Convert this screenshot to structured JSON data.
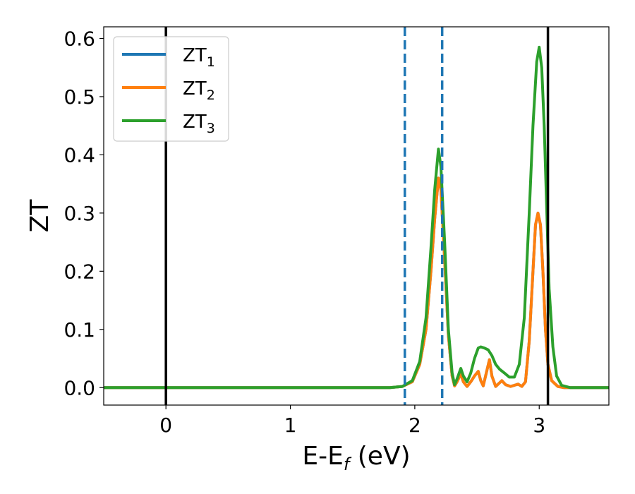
{
  "chart_data": {
    "type": "line",
    "xlabel": "E-E",
    "xlabel_subscript": "f",
    "xlabel_unit": " (eV)",
    "ylabel": "ZT",
    "xlim": [
      -0.5,
      3.56
    ],
    "ylim": [
      -0.03,
      0.62
    ],
    "x_ticks": [
      0,
      1,
      2,
      3
    ],
    "x_tick_labels": [
      "0",
      "1",
      "2",
      "3"
    ],
    "y_ticks": [
      0.0,
      0.1,
      0.2,
      0.3,
      0.4,
      0.5,
      0.6
    ],
    "y_tick_labels": [
      "0.0",
      "0.1",
      "0.2",
      "0.3",
      "0.4",
      "0.5",
      "0.6"
    ],
    "grid": false,
    "legend_position": "top-left",
    "series": [
      {
        "name": "ZT",
        "subscript": "1",
        "color": "#1f77b4",
        "points": [
          [
            -0.5,
            0
          ],
          [
            1.8,
            0
          ],
          [
            1.9,
            0.002
          ],
          [
            1.98,
            0.01
          ],
          [
            2.04,
            0.04
          ],
          [
            2.09,
            0.1
          ],
          [
            2.13,
            0.2
          ],
          [
            2.16,
            0.29
          ],
          [
            2.19,
            0.36
          ],
          [
            2.21,
            0.34
          ],
          [
            2.24,
            0.22
          ],
          [
            2.27,
            0.09
          ],
          [
            2.3,
            0.02
          ],
          [
            2.32,
            0.003
          ],
          [
            2.34,
            0.01
          ],
          [
            2.37,
            0.024
          ],
          [
            2.39,
            0.01
          ],
          [
            2.42,
            0.002
          ],
          [
            2.45,
            0.01
          ],
          [
            2.48,
            0.02
          ],
          [
            2.51,
            0.028
          ],
          [
            2.53,
            0.012
          ],
          [
            2.55,
            0.003
          ],
          [
            2.58,
            0.03
          ],
          [
            2.6,
            0.048
          ],
          [
            2.62,
            0.02
          ],
          [
            2.65,
            0.002
          ],
          [
            2.68,
            0.008
          ],
          [
            2.7,
            0.012
          ],
          [
            2.73,
            0.005
          ],
          [
            2.77,
            0.002
          ],
          [
            2.8,
            0.004
          ],
          [
            2.83,
            0.006
          ],
          [
            2.86,
            0.002
          ],
          [
            2.89,
            0.01
          ],
          [
            2.92,
            0.08
          ],
          [
            2.95,
            0.2
          ],
          [
            2.97,
            0.28
          ],
          [
            2.99,
            0.3
          ],
          [
            3.01,
            0.28
          ],
          [
            3.03,
            0.2
          ],
          [
            3.05,
            0.1
          ],
          [
            3.07,
            0.04
          ],
          [
            3.1,
            0.012
          ],
          [
            3.15,
            0.002
          ],
          [
            3.2,
            0
          ],
          [
            3.56,
            0
          ]
        ]
      },
      {
        "name": "ZT",
        "subscript": "2",
        "color": "#ff7f0e",
        "points": [
          [
            -0.5,
            0
          ],
          [
            1.8,
            0
          ],
          [
            1.9,
            0.002
          ],
          [
            1.98,
            0.01
          ],
          [
            2.04,
            0.04
          ],
          [
            2.09,
            0.1
          ],
          [
            2.13,
            0.2
          ],
          [
            2.16,
            0.29
          ],
          [
            2.19,
            0.36
          ],
          [
            2.21,
            0.34
          ],
          [
            2.24,
            0.22
          ],
          [
            2.27,
            0.09
          ],
          [
            2.3,
            0.02
          ],
          [
            2.32,
            0.003
          ],
          [
            2.34,
            0.01
          ],
          [
            2.37,
            0.024
          ],
          [
            2.39,
            0.01
          ],
          [
            2.42,
            0.002
          ],
          [
            2.45,
            0.01
          ],
          [
            2.48,
            0.02
          ],
          [
            2.51,
            0.028
          ],
          [
            2.53,
            0.012
          ],
          [
            2.55,
            0.003
          ],
          [
            2.58,
            0.03
          ],
          [
            2.6,
            0.048
          ],
          [
            2.62,
            0.02
          ],
          [
            2.65,
            0.002
          ],
          [
            2.68,
            0.008
          ],
          [
            2.7,
            0.012
          ],
          [
            2.73,
            0.005
          ],
          [
            2.77,
            0.002
          ],
          [
            2.8,
            0.004
          ],
          [
            2.83,
            0.006
          ],
          [
            2.86,
            0.002
          ],
          [
            2.89,
            0.01
          ],
          [
            2.92,
            0.08
          ],
          [
            2.95,
            0.2
          ],
          [
            2.97,
            0.28
          ],
          [
            2.99,
            0.3
          ],
          [
            3.01,
            0.28
          ],
          [
            3.03,
            0.2
          ],
          [
            3.05,
            0.1
          ],
          [
            3.07,
            0.04
          ],
          [
            3.1,
            0.012
          ],
          [
            3.15,
            0.002
          ],
          [
            3.2,
            0
          ],
          [
            3.56,
            0
          ]
        ]
      },
      {
        "name": "ZT",
        "subscript": "3",
        "color": "#2ca02c",
        "points": [
          [
            -0.5,
            0
          ],
          [
            1.8,
            0
          ],
          [
            1.9,
            0.002
          ],
          [
            1.98,
            0.012
          ],
          [
            2.04,
            0.045
          ],
          [
            2.09,
            0.12
          ],
          [
            2.13,
            0.24
          ],
          [
            2.16,
            0.34
          ],
          [
            2.19,
            0.41
          ],
          [
            2.21,
            0.38
          ],
          [
            2.24,
            0.25
          ],
          [
            2.27,
            0.1
          ],
          [
            2.3,
            0.025
          ],
          [
            2.32,
            0.005
          ],
          [
            2.34,
            0.015
          ],
          [
            2.37,
            0.033
          ],
          [
            2.39,
            0.02
          ],
          [
            2.42,
            0.01
          ],
          [
            2.45,
            0.025
          ],
          [
            2.48,
            0.05
          ],
          [
            2.51,
            0.068
          ],
          [
            2.53,
            0.07
          ],
          [
            2.56,
            0.068
          ],
          [
            2.59,
            0.065
          ],
          [
            2.62,
            0.055
          ],
          [
            2.65,
            0.04
          ],
          [
            2.68,
            0.032
          ],
          [
            2.72,
            0.025
          ],
          [
            2.76,
            0.018
          ],
          [
            2.8,
            0.018
          ],
          [
            2.84,
            0.04
          ],
          [
            2.88,
            0.12
          ],
          [
            2.92,
            0.3
          ],
          [
            2.95,
            0.45
          ],
          [
            2.98,
            0.56
          ],
          [
            3.0,
            0.585
          ],
          [
            3.02,
            0.55
          ],
          [
            3.04,
            0.45
          ],
          [
            3.06,
            0.31
          ],
          [
            3.08,
            0.17
          ],
          [
            3.11,
            0.07
          ],
          [
            3.14,
            0.02
          ],
          [
            3.18,
            0.004
          ],
          [
            3.25,
            0
          ],
          [
            3.56,
            0
          ]
        ]
      }
    ],
    "vertical_lines": [
      {
        "x": 0,
        "style": "solid",
        "color": "#000000"
      },
      {
        "x": 3.07,
        "style": "solid",
        "color": "#000000"
      },
      {
        "x": 1.92,
        "style": "dashed",
        "color": "#1f77b4"
      },
      {
        "x": 2.22,
        "style": "dashed",
        "color": "#1f77b4"
      }
    ]
  }
}
